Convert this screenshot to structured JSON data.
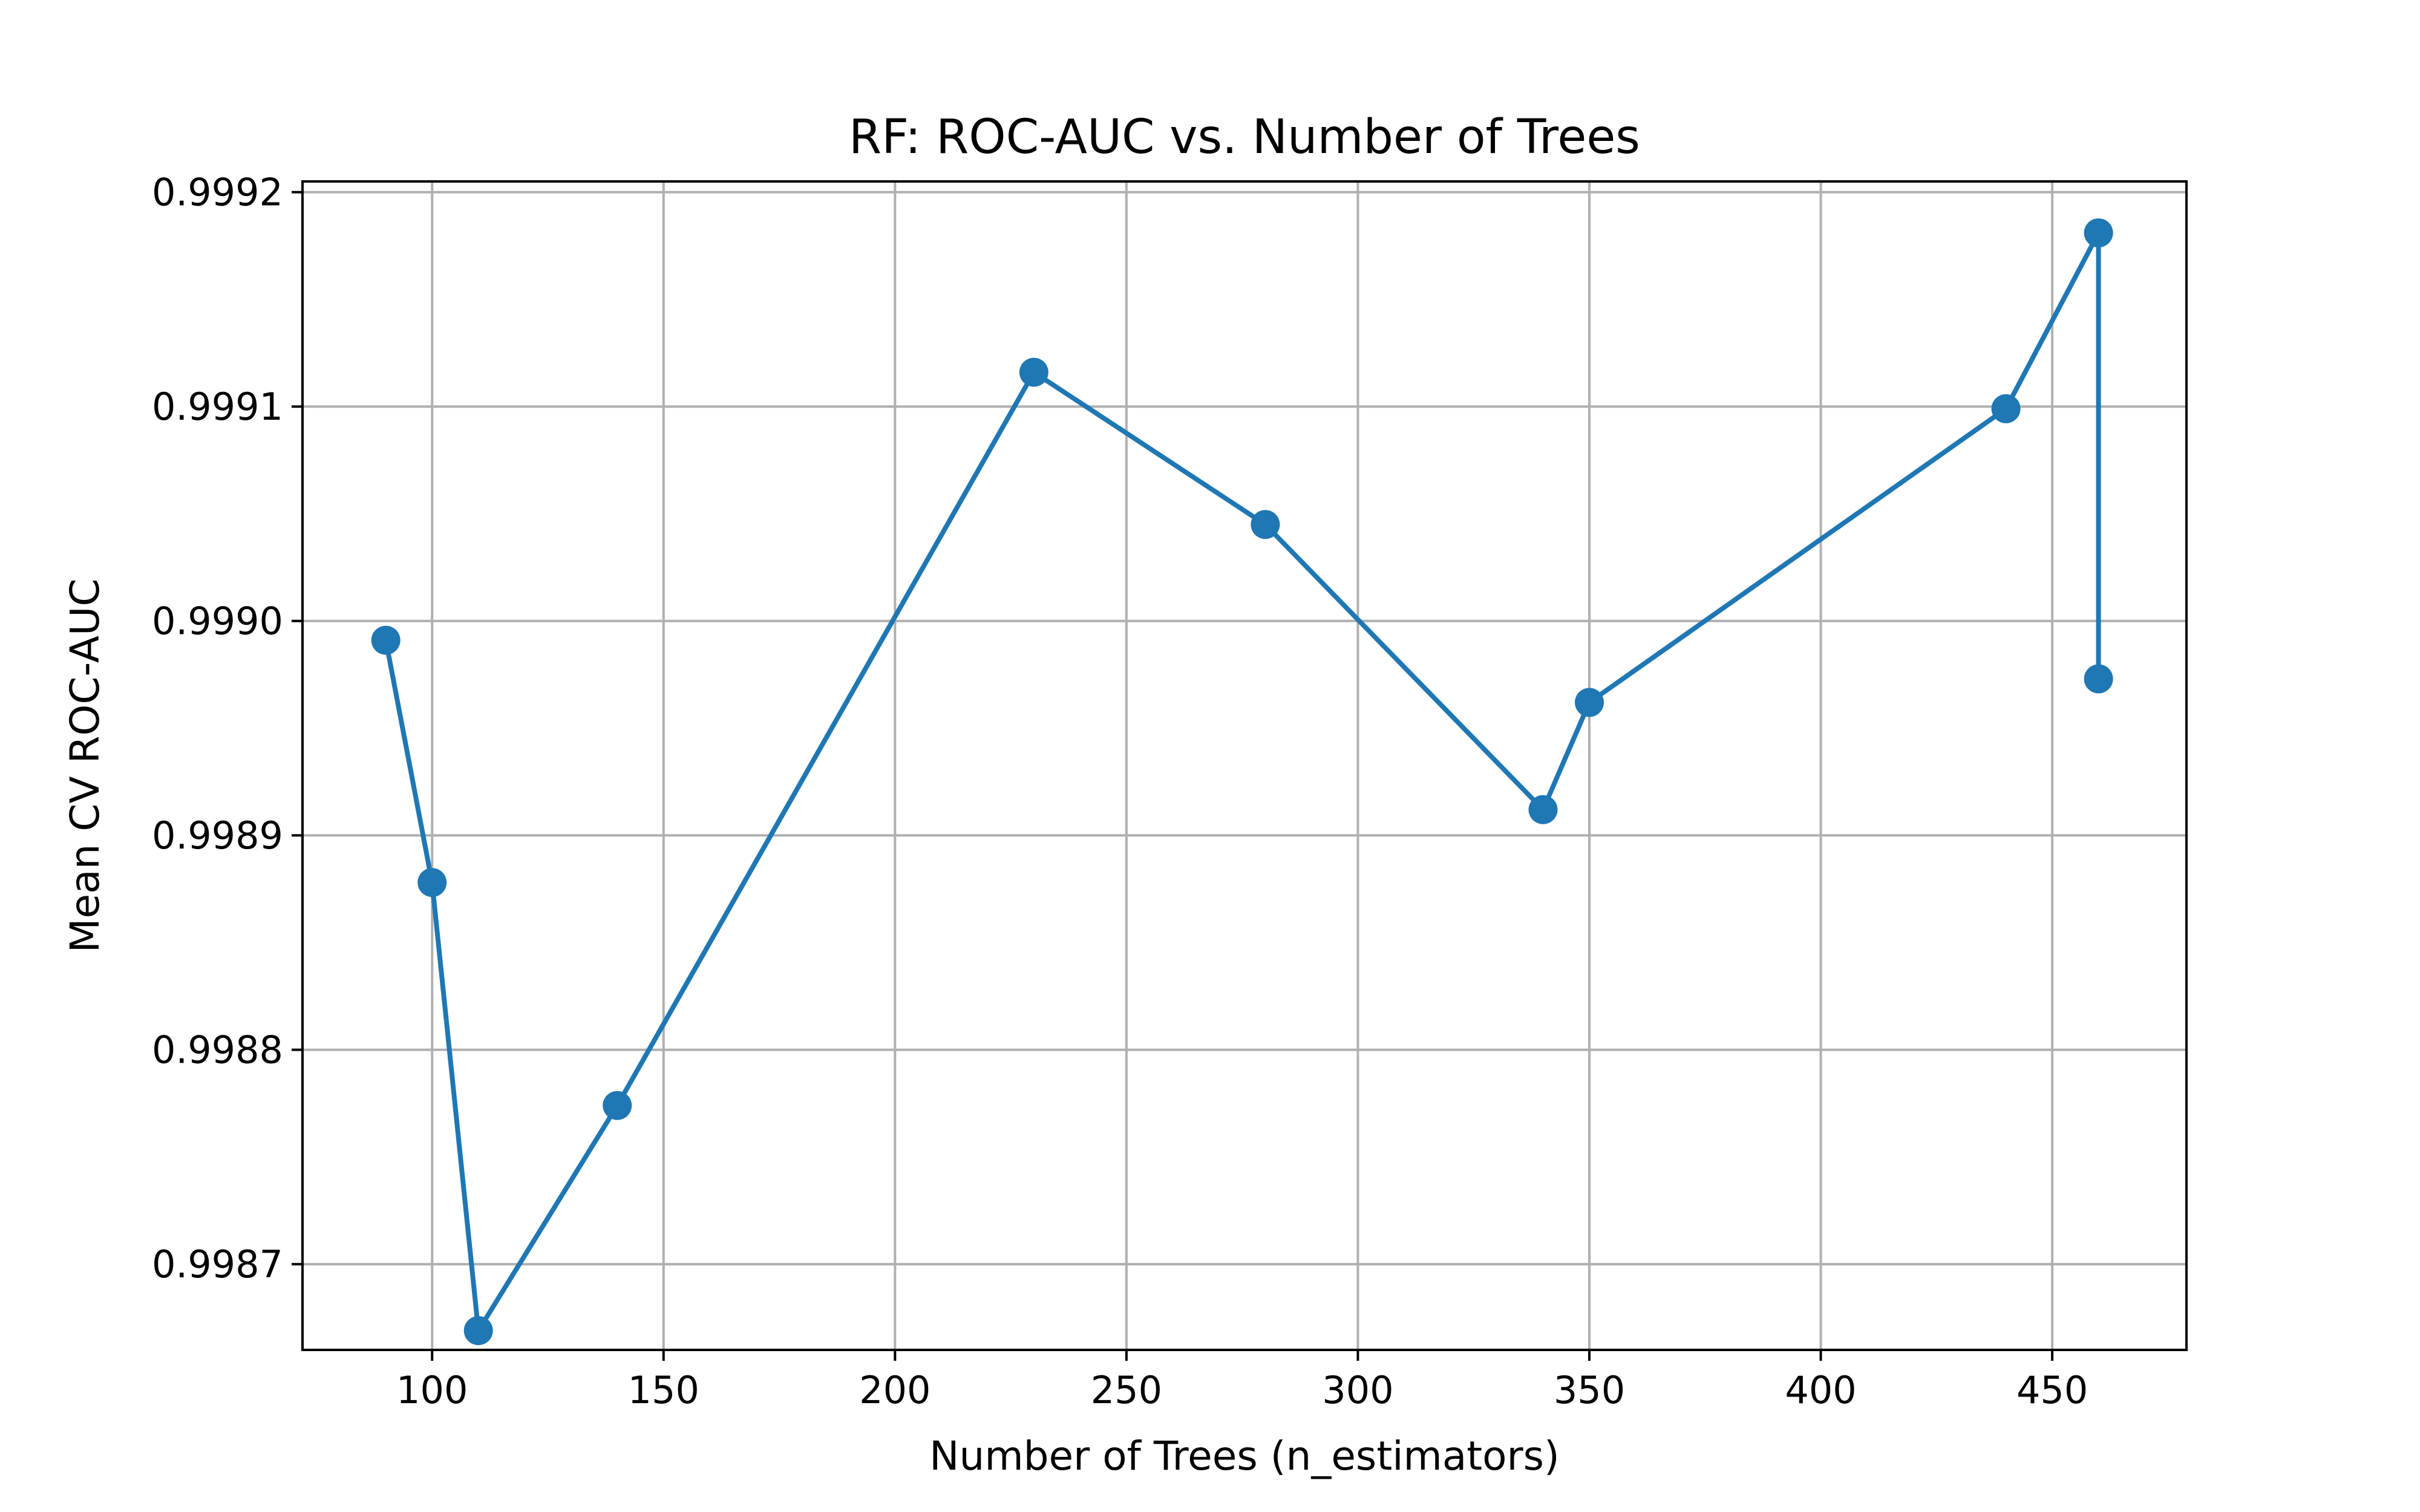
{
  "chart_data": {
    "type": "line",
    "title": "RF: ROC-AUC vs. Number of Trees",
    "xlabel": "Number of Trees (n_estimators)",
    "ylabel": "Mean CV ROC-AUC",
    "xlim": [
      72,
      479
    ],
    "ylim": [
      0.99866,
      0.999205
    ],
    "xticks": [
      100,
      150,
      200,
      250,
      300,
      350,
      400,
      450
    ],
    "xtick_labels": [
      "100",
      "150",
      "200",
      "250",
      "300",
      "350",
      "400",
      "450"
    ],
    "yticks": [
      0.9987,
      0.9988,
      0.9989,
      0.999,
      0.9991,
      0.9992
    ],
    "ytick_labels": [
      "0.9987",
      "0.9988",
      "0.9989",
      "0.9990",
      "0.9991",
      "0.9992"
    ],
    "grid": true,
    "legend": "none",
    "series": [
      {
        "color": "#1f77b4",
        "marker": "circle",
        "x": [
          90,
          100,
          110,
          140,
          230,
          280,
          340,
          350,
          440,
          460,
          460
        ],
        "y": [
          0.998991,
          0.998878,
          0.998669,
          0.998774,
          0.999116,
          0.999045,
          0.998912,
          0.998962,
          0.999099,
          0.999181,
          0.998973
        ]
      }
    ]
  }
}
